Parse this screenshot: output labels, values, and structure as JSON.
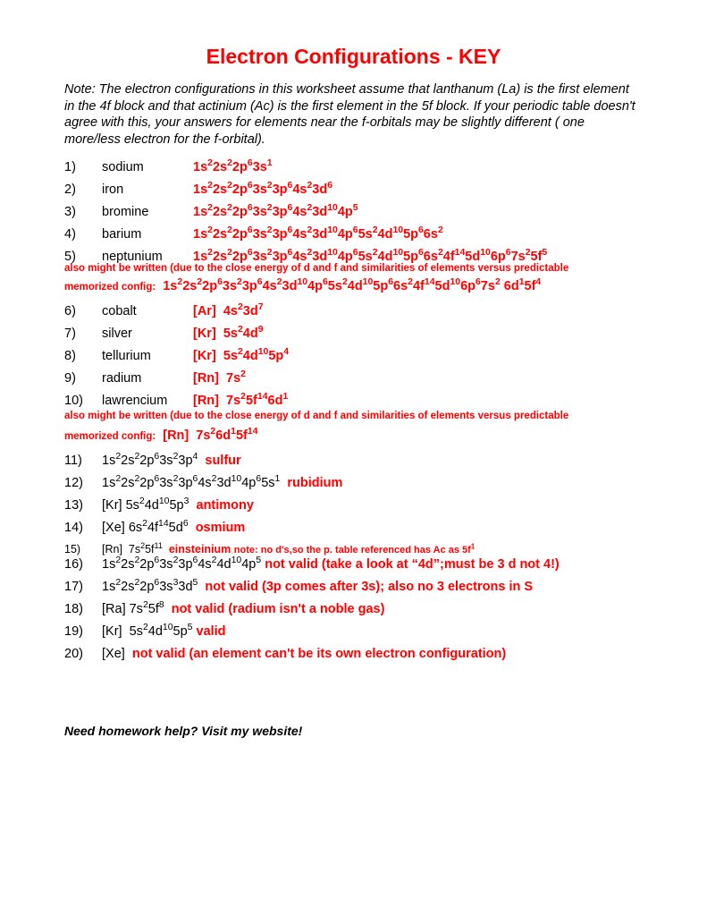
{
  "title": "Electron Configurations - KEY",
  "note": "Note:  The electron configurations in this worksheet assume that lanthanum (La) is the first element in the 4f block and that actinium (Ac) is the first element in the 5f block.  If your periodic table doesn't agree with this, your answers for elements near the f-orbitals may be slightly different ( one more/less electron for the  f-orbital).",
  "colors": {
    "accent": "#ff0000",
    "text": "#000000",
    "background": "#ffffff"
  },
  "typography": {
    "title_fontsize": 23,
    "body_fontsize": 14.5,
    "small_fontsize": 11.5,
    "font_family": "Arial"
  },
  "block1": [
    {
      "n": "1)",
      "element": "sodium",
      "config_html": "1s<sup>2</sup>2s<sup>2</sup>2p<sup>6</sup>3s<sup>1</sup>"
    },
    {
      "n": "2)",
      "element": "iron",
      "config_html": "1s<sup>2</sup>2s<sup>2</sup>2p<sup>6</sup>3s<sup>2</sup>3p<sup>6</sup>4s<sup>2</sup>3d<sup>6</sup>"
    },
    {
      "n": "3)",
      "element": "bromine",
      "config_html": "1s<sup>2</sup>2s<sup>2</sup>2p<sup>6</sup>3s<sup>2</sup>3p<sup>6</sup>4s<sup>2</sup>3d<sup>10</sup>4p<sup>5</sup>"
    },
    {
      "n": "4)",
      "element": "barium",
      "config_html": "1s<sup>2</sup>2s<sup>2</sup>2p<sup>6</sup>3s<sup>2</sup>3p<sup>6</sup>4s<sup>2</sup>3d<sup>10</sup>4p<sup>6</sup>5s<sup>2</sup>4d<sup>10</sup>5p<sup>6</sup>6s<sup>2</sup>"
    }
  ],
  "item5": {
    "n": "5)",
    "element": "neptunium",
    "config_html": "1s<sup>2</sup>2s<sup>2</sup>2p<sup>6</sup>3s<sup>2</sup>3p<sup>6</sup>4s<sup>2</sup>3d<sup>10</sup>4p<sup>6</sup>5s<sup>2</sup>4d<sup>10</sup>5p<sup>6</sup>6s<sup>2</sup>4f<sup>14</sup>5d<sup>10</sup>6p<sup>6</sup>7s<sup>2</sup>5f<sup>5</sup>",
    "subnote": "also might be written (due to the close energy of d and f and similarities of elements versus predictable",
    "memlabel": "memorized config:",
    "memconf_html": "1s<sup>2</sup>2s<sup>2</sup>2p<sup>6</sup>3s<sup>2</sup>3p<sup>6</sup>4s<sup>2</sup>3d<sup>10</sup>4p<sup>6</sup>5s<sup>2</sup>4d<sup>10</sup>5p<sup>6</sup>6s<sup>2</sup>4f<sup>14</sup>5d<sup>10</sup>6p<sup>6</sup>7s<sup>2</sup> 6d<sup>1</sup>5f<sup>4</sup>"
  },
  "block2": [
    {
      "n": "6)",
      "element": "cobalt",
      "config_html": "[Ar]&nbsp;&nbsp;4s<sup>2</sup>3d<sup>7</sup>"
    },
    {
      "n": "7)",
      "element": "silver",
      "config_html": "[Kr]&nbsp;&nbsp;5s<sup>2</sup>4d<sup>9</sup>"
    },
    {
      "n": "8)",
      "element": "tellurium",
      "config_html": "[Kr]&nbsp;&nbsp;5s<sup>2</sup>4d<sup>10</sup>5p<sup>4</sup>"
    },
    {
      "n": "9)",
      "element": "radium",
      "config_html": "[Rn]&nbsp;&nbsp;7s<sup>2</sup>"
    }
  ],
  "item10": {
    "n": "10)",
    "element": "lawrencium",
    "config_html": "[Rn]&nbsp;&nbsp;7s<sup>2</sup>5f<sup>14</sup>6d<sup>1</sup>",
    "subnote": "also might be written (due to the close energy of d and f and similarities of elements versus predictable",
    "memlabel": "memorized config:",
    "memconf_html": "[Rn]&nbsp;&nbsp;7s<sup>2</sup>6d<sup>1</sup>5f<sup>14</sup>"
  },
  "block3": [
    {
      "n": "11)",
      "body_html": "1s<sup>2</sup>2s<sup>2</sup>2p<sup>6</sup>3s<sup>2</sup>3p<sup>4</sup>&nbsp;&nbsp;<span class='red bold'>sulfur</span>"
    },
    {
      "n": "12)",
      "body_html": "1s<sup>2</sup>2s<sup>2</sup>2p<sup>6</sup>3s<sup>2</sup>3p<sup>6</sup>4s<sup>2</sup>3d<sup>10</sup>4p<sup>6</sup>5s<sup>1</sup>&nbsp;&nbsp;<span class='red bold'>rubidium</span>"
    },
    {
      "n": "13)",
      "body_html": "[Kr] 5s<sup>2</sup>4d<sup>10</sup>5p<sup>3</sup>&nbsp;&nbsp;<span class='red bold'>antimony</span>"
    },
    {
      "n": "14)",
      "body_html": "[Xe] 6s<sup>2</sup>4f<sup>14</sup>5d<sup>6</sup>&nbsp;&nbsp;<span class='red bold'>osmium</span>"
    }
  ],
  "item15": {
    "n": "15)",
    "body_html": "[Rn]&nbsp;&nbsp;7s<sup>2</sup>5f<sup>11</sup>&nbsp;&nbsp;<span class='red bold'>einsteinium</span> <span class='smallnote'>note: no d's,so the p. table referenced has Ac  as 5f<sup>1</sup></span>"
  },
  "block4": [
    {
      "n": "16)",
      "body_html": "1s<sup>2</sup>2s<sup>2</sup>2p<sup>6</sup>3s<sup>2</sup>3p<sup>6</sup>4s<sup>2</sup>4d<sup>10</sup>4p<sup>5</sup> <span class='red bold'>not valid</span> <span class='red bold'>(take a look at “4d”;must be 3 d not 4!)</span>"
    },
    {
      "n": "17)",
      "body_html": "1s<sup>2</sup>2s<sup>2</sup>2p<sup>6</sup>3s<sup>3</sup>3d<sup>5</sup>&nbsp;&nbsp;<span class='red bold'>not valid (3p comes after 3s);</span> <span class='red bold'>also no 3 electrons in S</span>"
    },
    {
      "n": "18)",
      "body_html": "[Ra] 7s<sup>2</sup>5f<sup>8</sup>&nbsp;&nbsp;<span class='red bold'>not valid (radium isn't a noble gas)</span>"
    },
    {
      "n": "19)",
      "body_html": "[Kr]&nbsp;&nbsp;5s<sup>2</sup>4d<sup>10</sup>5p<sup>5</sup> <span class='red bold'>valid</span>"
    },
    {
      "n": "20)",
      "body_html": "[Xe]&nbsp;&nbsp;<span class='red bold'>not valid (an element can't be its own electron configuration)</span>"
    }
  ],
  "footer": "Need homework help?  Visit my website!"
}
